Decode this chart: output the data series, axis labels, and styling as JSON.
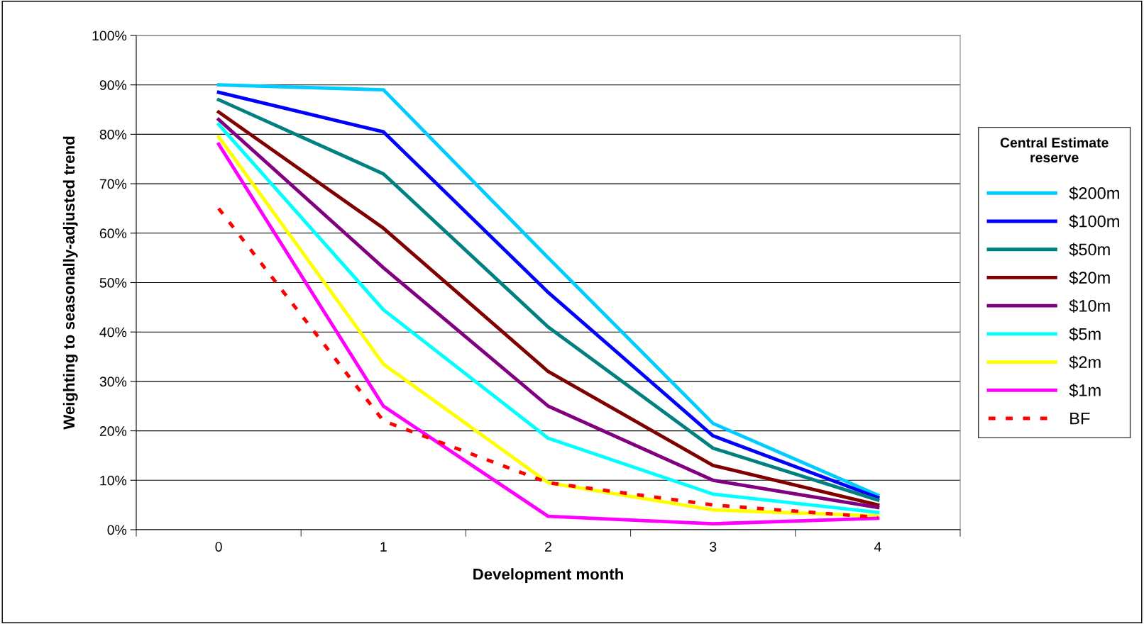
{
  "chart_data": {
    "type": "line",
    "xlabel": "Development month",
    "ylabel": "Weighting to seasonally-adjusted trend",
    "categories": [
      "0",
      "1",
      "2",
      "3",
      "4"
    ],
    "ylim": [
      0,
      100
    ],
    "yticks": [
      {
        "value": 0,
        "label": "0%"
      },
      {
        "value": 10,
        "label": "10%"
      },
      {
        "value": 20,
        "label": "20%"
      },
      {
        "value": 30,
        "label": "30%"
      },
      {
        "value": 40,
        "label": "40%"
      },
      {
        "value": 50,
        "label": "50%"
      },
      {
        "value": 60,
        "label": "60%"
      },
      {
        "value": 70,
        "label": "70%"
      },
      {
        "value": 80,
        "label": "80%"
      },
      {
        "value": 90,
        "label": "90%"
      },
      {
        "value": 100,
        "label": "100%"
      }
    ],
    "grid": "y",
    "legend": "right",
    "legend_title": "Central Estimate reserve",
    "marker": "none",
    "line_style": "solid",
    "series": [
      {
        "name": "$200m",
        "color": "#00ccff",
        "values": [
          90,
          89,
          55,
          21.5,
          7
        ]
      },
      {
        "name": "$100m",
        "color": "#0000ff",
        "values": [
          88.5,
          80.5,
          48,
          19,
          6.5
        ]
      },
      {
        "name": "$50m",
        "color": "#008080",
        "values": [
          87,
          72,
          41,
          16.5,
          6
        ]
      },
      {
        "name": "$20m",
        "color": "#800000",
        "values": [
          84.5,
          61,
          32,
          13,
          5
        ]
      },
      {
        "name": "$10m",
        "color": "#800080",
        "values": [
          83,
          53,
          25,
          10,
          4.5
        ]
      },
      {
        "name": "$5m",
        "color": "#00ffff",
        "values": [
          82,
          44.5,
          18.5,
          7.2,
          3.5
        ]
      },
      {
        "name": "$2m",
        "color": "#ffff00",
        "values": [
          79.5,
          33.5,
          9.5,
          4,
          2.8
        ]
      },
      {
        "name": "$1m",
        "color": "#ff00ff",
        "values": [
          78,
          25,
          2.7,
          1.2,
          2.3
        ]
      },
      {
        "name": "BF",
        "color": "#ff0000",
        "values": [
          65,
          22,
          9.5,
          5,
          2.5
        ],
        "line_style": "dashed"
      }
    ]
  }
}
